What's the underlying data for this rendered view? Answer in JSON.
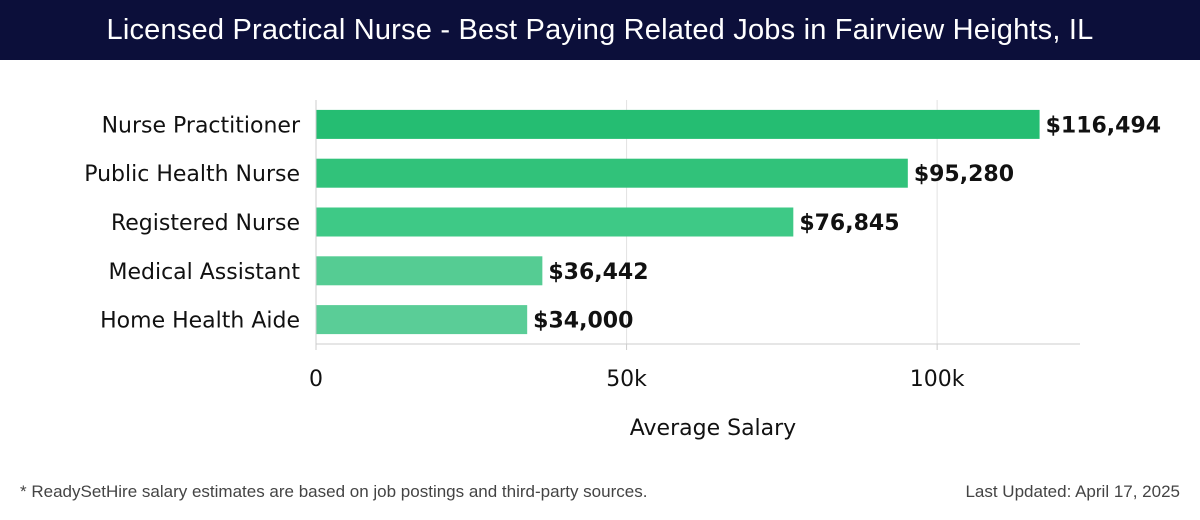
{
  "header": {
    "title": "Licensed Practical Nurse - Best Paying Related Jobs in Fairview Heights, IL"
  },
  "chart_data": {
    "type": "bar",
    "orientation": "horizontal",
    "categories": [
      "Nurse Practitioner",
      "Public Health Nurse",
      "Registered Nurse",
      "Medical Assistant",
      "Home Health Aide"
    ],
    "values": [
      116494,
      95280,
      76845,
      36442,
      34000
    ],
    "data_labels": [
      "$116,494",
      "$95,280",
      "$76,845",
      "$36,442",
      "$34,000"
    ],
    "bar_colors": [
      "#25bd72",
      "#31c27a",
      "#3ec986",
      "#55cc93",
      "#5acd97"
    ],
    "title": "Licensed Practical Nurse - Best Paying Related Jobs in Fairview Heights, IL",
    "xlabel": "Average Salary",
    "ylabel": "",
    "xlim": [
      0,
      123000
    ],
    "xticks": [
      0,
      50000,
      100000
    ],
    "xtick_labels": [
      "0",
      "50k",
      "100k"
    ],
    "grid": true
  },
  "footer": {
    "note": "* ReadySetHire salary estimates are based on job postings and third-party sources.",
    "updated": "Last Updated: April 17, 2025"
  }
}
